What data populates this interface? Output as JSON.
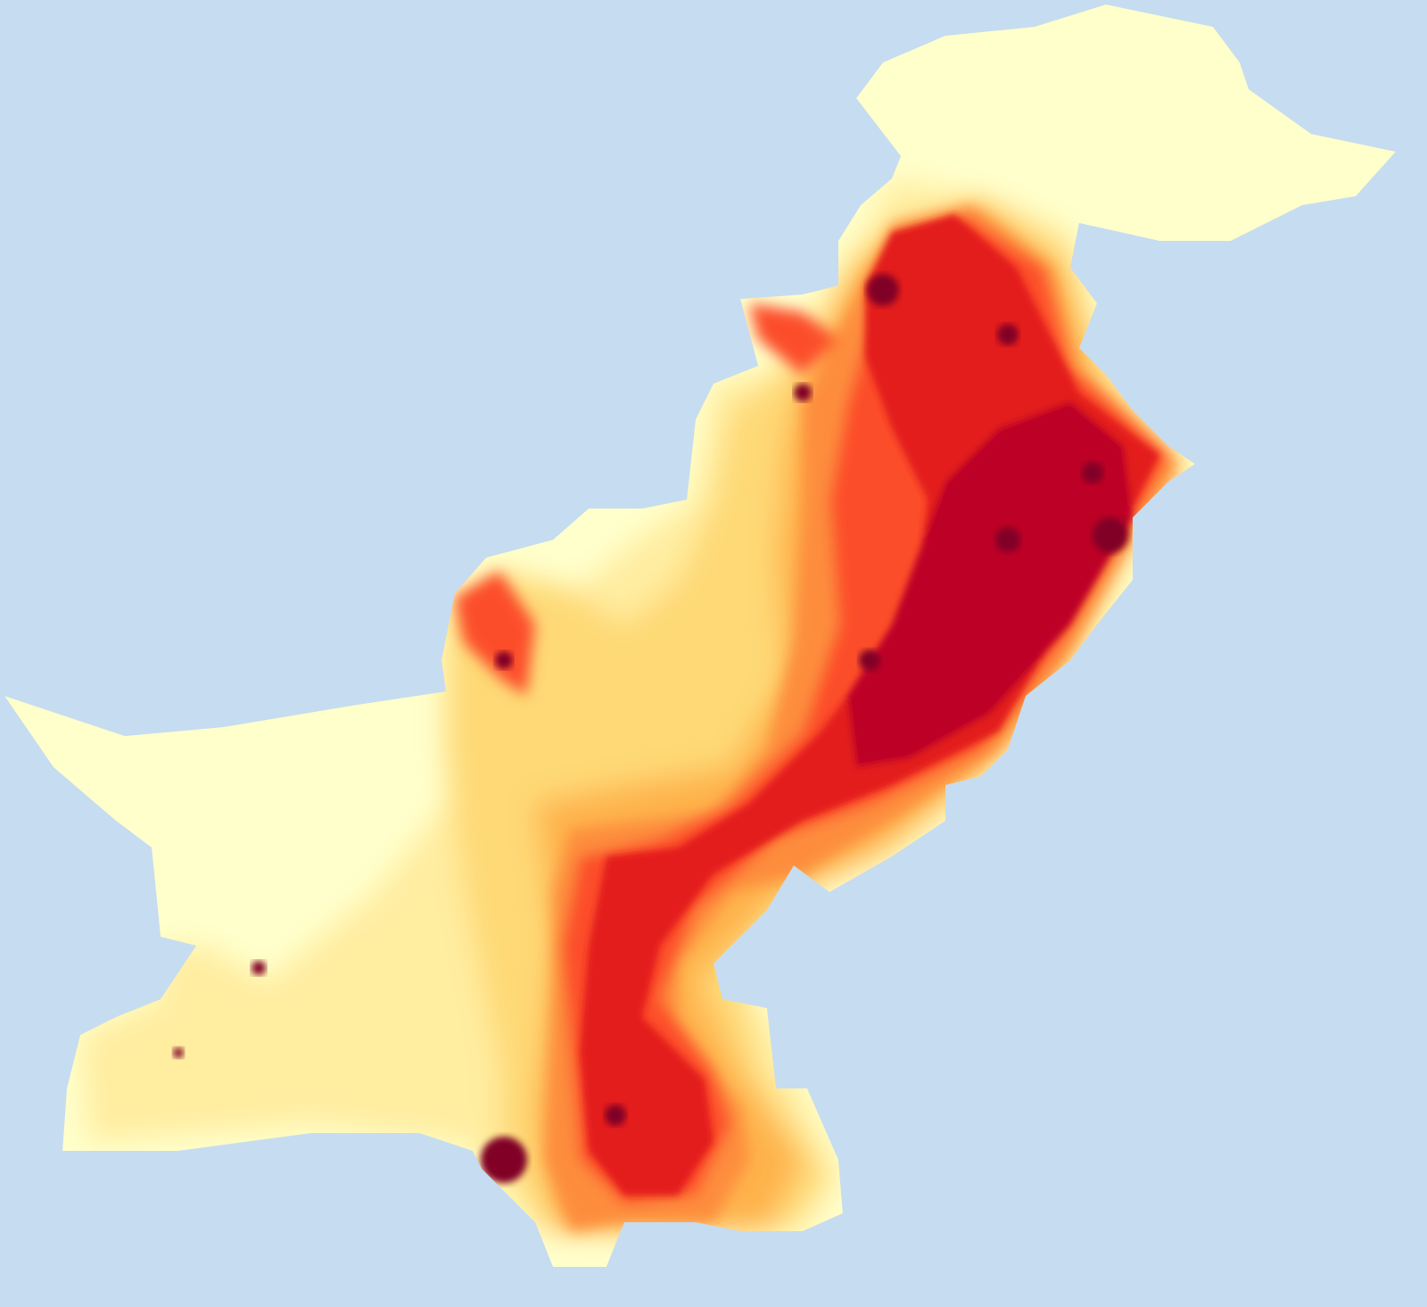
{
  "map": {
    "background_color": "#c6dcf0",
    "color_scale": [
      "#ffffcc",
      "#ffeda0",
      "#fed976",
      "#feb24c",
      "#fd8d3c",
      "#fc4e2a",
      "#e31a1c",
      "#bd0026",
      "#800026"
    ],
    "scale_type": "sequential yellow-orange-red (low to high intensity)",
    "legend": "none",
    "labels": "none"
  }
}
